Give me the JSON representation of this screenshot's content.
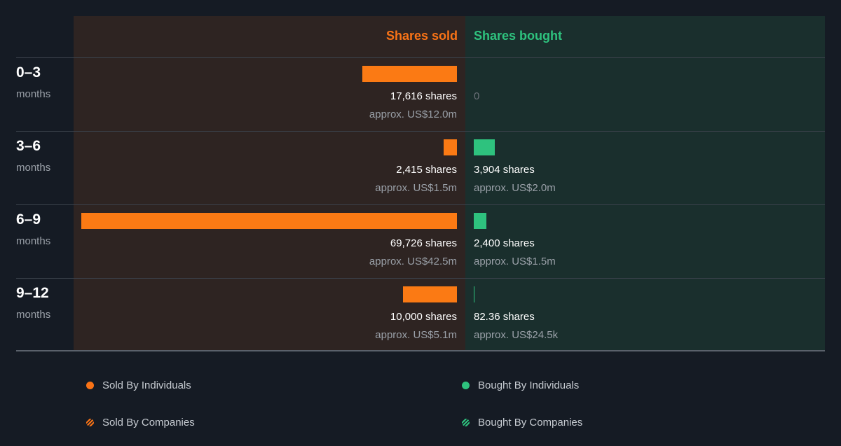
{
  "chart_data": {
    "type": "bar",
    "headers": {
      "sold": "Shares sold",
      "bought": "Shares bought"
    },
    "categories": [
      {
        "period": "0–3",
        "unit": "months"
      },
      {
        "period": "3–6",
        "unit": "months"
      },
      {
        "period": "6–9",
        "unit": "months"
      },
      {
        "period": "9–12",
        "unit": "months"
      }
    ],
    "series": [
      {
        "name": "Shares sold",
        "values": [
          17616,
          2415,
          69726,
          10000
        ],
        "shares_text": [
          "17,616 shares",
          "2,415 shares",
          "69,726 shares",
          "10,000 shares"
        ],
        "approx_text": [
          "approx. US$12.0m",
          "approx. US$1.5m",
          "approx. US$42.5m",
          "approx. US$5.1m"
        ]
      },
      {
        "name": "Shares bought",
        "values": [
          0,
          3904,
          2400,
          82.36
        ],
        "shares_text": [
          "0",
          "3,904 shares",
          "2,400 shares",
          "82.36 shares"
        ],
        "approx_text": [
          "",
          "approx. US$2.0m",
          "approx. US$1.5m",
          "approx. US$24.5k"
        ]
      }
    ],
    "scale_max": 69726,
    "legend": [
      {
        "label": "Sold By Individuals",
        "color": "#f97316",
        "style": "solid"
      },
      {
        "label": "Bought By Individuals",
        "color": "#2ec27e",
        "style": "solid"
      },
      {
        "label": "Sold By Companies",
        "color": "#f97316",
        "style": "striped"
      },
      {
        "label": "Bought By Companies",
        "color": "#2ec27e",
        "style": "striped"
      }
    ],
    "legend_placement": "bottom",
    "colors": {
      "sold": "#f97316",
      "bought": "#2ec27e",
      "background": "#151b24"
    }
  }
}
